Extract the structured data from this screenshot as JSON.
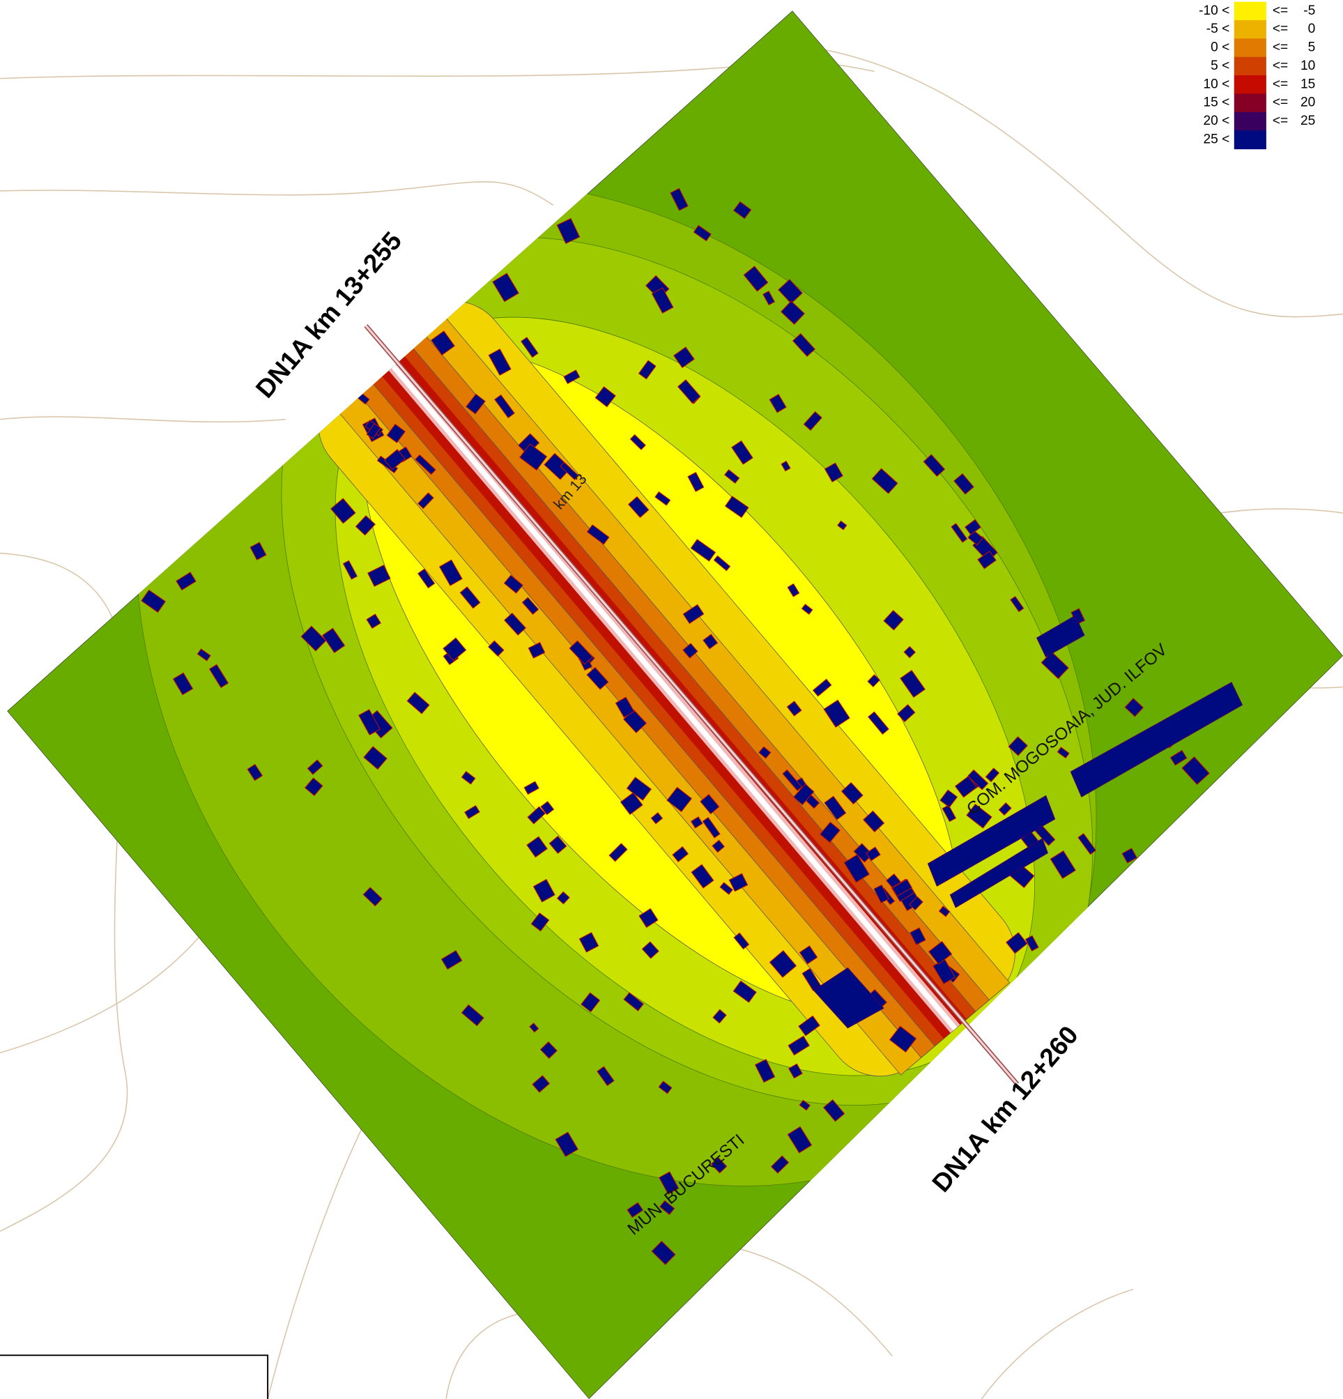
{
  "labels": {
    "start": "DN1A km 13+255",
    "end": "DN1A km 12+260",
    "km_marker": "km 13",
    "north_area": "COM. MOGOSOAIA, JUD. ILFOV",
    "south_area": "MUN. BUCURESTI"
  },
  "legend": [
    {
      "low": "-10 <",
      "op": "<=",
      "high": "-5",
      "color": "#fff000"
    },
    {
      "low": "-5 <",
      "op": "<=",
      "high": "0",
      "color": "#edb100"
    },
    {
      "low": "0 <",
      "op": "<=",
      "high": "5",
      "color": "#e07a00"
    },
    {
      "low": "5 <",
      "op": "<=",
      "high": "10",
      "color": "#d04000"
    },
    {
      "low": "10 <",
      "op": "<=",
      "high": "15",
      "color": "#c50a00"
    },
    {
      "low": "15 <",
      "op": "<=",
      "high": "20",
      "color": "#860025"
    },
    {
      "low": "20 <",
      "op": "<=",
      "high": "25",
      "color": "#3a0060"
    },
    {
      "low": "25 <",
      "color": "#000a80"
    }
  ]
}
